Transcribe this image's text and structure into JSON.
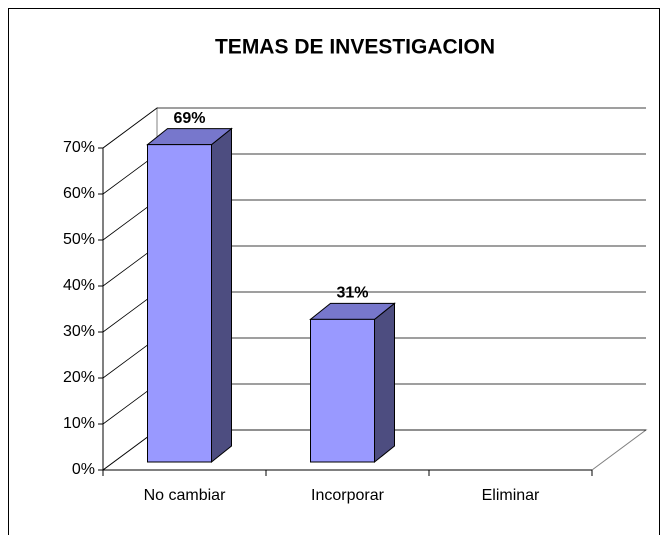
{
  "chart_data": {
    "type": "bar3d",
    "title": "TEMAS DE INVESTIGACION",
    "categories": [
      "No cambiar",
      "Incorporar",
      "Eliminar"
    ],
    "values": [
      69,
      31,
      0
    ],
    "value_labels": [
      "69%",
      "31%",
      null
    ],
    "color": "#9999ff",
    "ylim": [
      0,
      70
    ],
    "yticks": [
      {
        "value": 0,
        "label": "0%"
      },
      {
        "value": 10,
        "label": "10%"
      },
      {
        "value": 20,
        "label": "20%"
      },
      {
        "value": 30,
        "label": "30%"
      },
      {
        "value": 40,
        "label": "40%"
      },
      {
        "value": 50,
        "label": "50%"
      },
      {
        "value": 60,
        "label": "60%"
      },
      {
        "value": 70,
        "label": "70%"
      }
    ],
    "grid": true
  }
}
